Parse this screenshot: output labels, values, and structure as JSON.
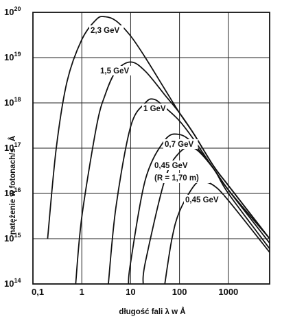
{
  "chart_data": {
    "type": "line",
    "xlabel": "długość fali λ w Å",
    "ylabel": "natężenie w fotonach/s · Å",
    "x_scale": "log",
    "y_scale": "log",
    "xlim": [
      0.1,
      7000
    ],
    "ylim": [
      100000000000000.0,
      1e+20
    ],
    "grid": true,
    "x_ticks": [
      "0,1",
      "1",
      "10",
      "100",
      "1000"
    ],
    "y_ticks": [
      {
        "base": "10",
        "exp": "14"
      },
      {
        "base": "10",
        "exp": "15"
      },
      {
        "base": "10",
        "exp": "16"
      },
      {
        "base": "10",
        "exp": "17"
      },
      {
        "base": "10",
        "exp": "18"
      },
      {
        "base": "10",
        "exp": "19"
      },
      {
        "base": "10",
        "exp": "20"
      }
    ],
    "series": [
      {
        "name": "2,3 GeV",
        "x": [
          0.2,
          0.3,
          0.5,
          1,
          2,
          3,
          5,
          10,
          20,
          50,
          100,
          200,
          500,
          1000,
          7000
        ],
        "y": [
          1000000000000000.0,
          1e+17,
          3e+18,
          2.5e+19,
          7e+19,
          8e+19,
          6.5e+19,
          3e+19,
          1e+19,
          2e+18,
          6e+17,
          2e+17,
          4e+16,
          1.5e+16,
          1000000000000000.0
        ]
      },
      {
        "name": "1,5 GeV",
        "x": [
          0.75,
          1,
          2,
          3,
          5,
          10,
          20,
          50,
          100,
          200,
          500,
          1000,
          7000
        ],
        "y": [
          100000000000000.0,
          3000000000000000.0,
          3e+17,
          1.5e+18,
          5e+18,
          8e+18,
          5e+18,
          1.5e+18,
          6e+17,
          2e+17,
          4e+16,
          1.5e+16,
          1000000000000000.0
        ]
      },
      {
        "name": "1 GeV",
        "x": [
          3.5,
          5,
          10,
          20,
          30,
          50,
          100,
          200,
          500,
          1000,
          7000
        ],
        "y": [
          100000000000000.0,
          5000000000000000.0,
          3e+17,
          1e+18,
          1.2e+18,
          8e+17,
          4e+17,
          1.5e+17,
          3.5e+16,
          1.2e+16,
          1000000000000000.0
        ]
      },
      {
        "name": "0,7 GeV",
        "x": [
          9,
          10,
          20,
          50,
          100,
          200,
          500,
          1000,
          7000
        ],
        "y": [
          100000000000000.0,
          300000000000000.0,
          2e+16,
          1.5e+17,
          2e+17,
          1.2e+17,
          3.5e+16,
          1.2e+16,
          800000000000000.0
        ]
      },
      {
        "name": "0,45 GeV",
        "x": [
          18,
          20,
          50,
          100,
          200,
          500,
          1000,
          7000
        ],
        "y": [
          100000000000000.0,
          300000000000000.0,
          2e+16,
          8e+16,
          1e+17,
          3.5e+16,
          1e+16,
          600000000000000.0
        ]
      },
      {
        "name": "0,45 GeV",
        "x": [
          50,
          70,
          100,
          200,
          300,
          500,
          1000,
          7000
        ],
        "y": [
          100000000000000.0,
          1000000000000000.0,
          4000000000000000.0,
          1.5e+16,
          1.8e+16,
          1.5e+16,
          7000000000000000.0,
          500000000000000.0
        ]
      }
    ],
    "annotations": [
      {
        "text": "2,3 GeV"
      },
      {
        "text": "1,5 GeV"
      },
      {
        "text": "1 GeV"
      },
      {
        "text": "0,7 GeV"
      },
      {
        "text": "0,45 GeV"
      },
      {
        "text": "(R = 1,70 m)"
      },
      {
        "text": "0,45 GeV"
      }
    ]
  }
}
